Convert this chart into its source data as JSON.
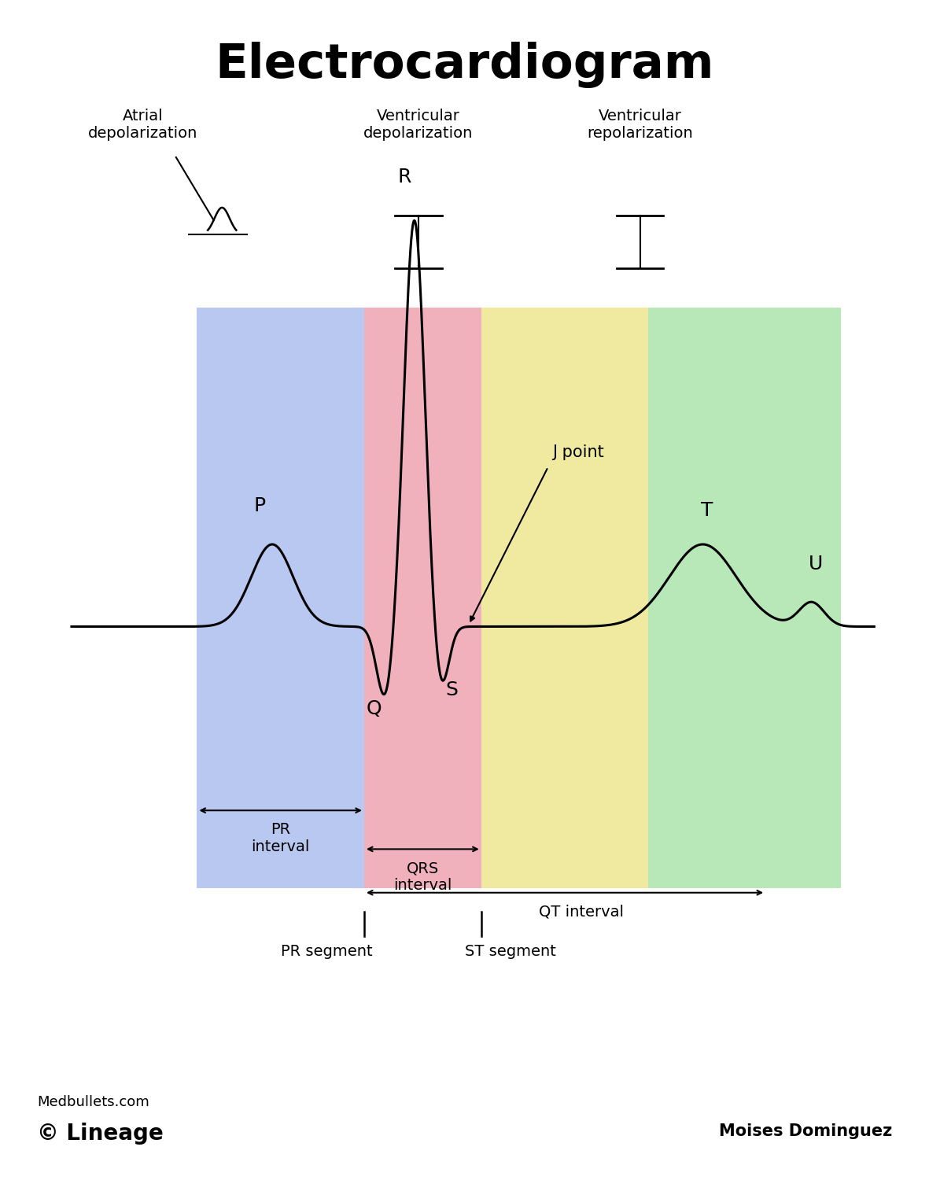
{
  "title": "Electrocardiogram",
  "title_fontsize": 44,
  "background_color": "#ffffff",
  "region_colors": {
    "blue": "#b8c8f0",
    "pink": "#f0b0bc",
    "yellow": "#f0eaa0",
    "green": "#b8e8b8"
  },
  "footer_left_top": "Medbullets.com",
  "footer_left_bottom": "© Lineage",
  "footer_right_top": "Moises Dominguez"
}
